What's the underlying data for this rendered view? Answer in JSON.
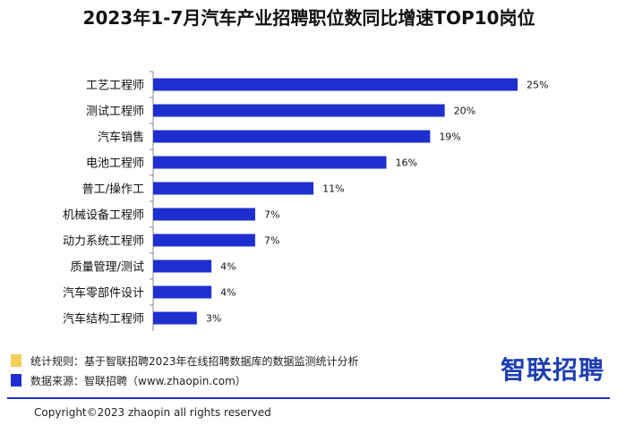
{
  "title": "2023年1-7月汽车产业招聘职位数同比增速TOP10岗位",
  "chart_data": {
    "type": "bar",
    "orientation": "horizontal",
    "categories": [
      "工艺工程师",
      "测试工程师",
      "汽车销售",
      "电池工程师",
      "普工/操作工",
      "机械设备工程师",
      "动力系统工程师",
      "质量管理/测试",
      "汽车零部件设计",
      "汽车结构工程师"
    ],
    "values": [
      25,
      20,
      19,
      16,
      11,
      7,
      7,
      4,
      4,
      3
    ],
    "value_labels": [
      "25%",
      "20%",
      "19%",
      "16%",
      "11%",
      "7%",
      "7%",
      "4%",
      "4%",
      "3%"
    ],
    "xlim": [
      0,
      25
    ],
    "bar_color": "#1e2fd0",
    "grid": false
  },
  "notes": [
    {
      "text": "统计规则：基于智联招聘2023年在线招聘数据库的数据监测统计分析",
      "color": "#f5cf5a"
    },
    {
      "text": "数据来源：智联招聘（www.zhaopin.com）",
      "color": "#1e2fd0"
    }
  ],
  "brand": "智联招聘",
  "copyright": "Copyright©2023 zhaopin all rights reserved"
}
